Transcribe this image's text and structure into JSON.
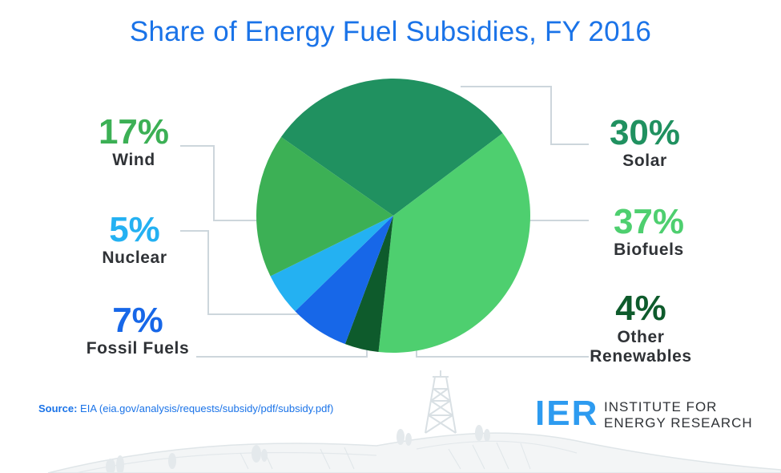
{
  "title": "Share of Energy Fuel Subsidies, FY 2016",
  "source": {
    "label": "Source:",
    "text": "EIA (eia.gov/analysis/requests/subsidy/pdf/subsidy.pdf)"
  },
  "logo": {
    "acronym": "IER",
    "line1": "INSTITUTE FOR",
    "line2": "ENERGY RESEARCH"
  },
  "colors": {
    "solar": "#209160",
    "biofuels": "#4ecf6f",
    "other_renewables": "#0e5b2c",
    "fossil_fuels": "#1767e8",
    "nuclear": "#24b1f2",
    "wind": "#3cb055",
    "line": "#cdd6dc"
  },
  "chart_data": {
    "type": "pie",
    "title": "Share of Energy Fuel Subsidies, FY 2016",
    "slices": [
      {
        "label": "Solar",
        "value": 30,
        "pct_text": "30%",
        "color": "#209160"
      },
      {
        "label": "Biofuels",
        "value": 37,
        "pct_text": "37%",
        "color": "#4ecf6f"
      },
      {
        "label": "Other Renewables",
        "value": 4,
        "pct_text": "4%",
        "color": "#0e5b2c"
      },
      {
        "label": "Fossil Fuels",
        "value": 7,
        "pct_text": "7%",
        "color": "#1767e8"
      },
      {
        "label": "Nuclear",
        "value": 5,
        "pct_text": "5%",
        "color": "#24b1f2"
      },
      {
        "label": "Wind",
        "value": 17,
        "pct_text": "17%",
        "color": "#3cb055"
      }
    ]
  }
}
